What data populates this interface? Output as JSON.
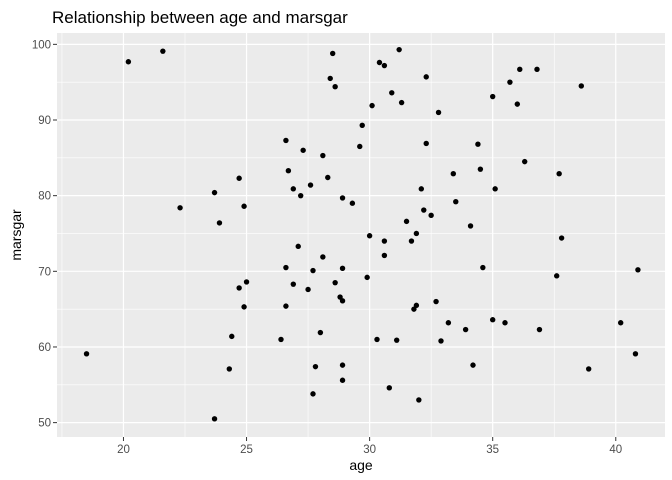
{
  "chart_data": {
    "type": "scatter",
    "title": "Relationship between age and marsgar",
    "xlabel": "age",
    "ylabel": "marsgar",
    "xlim": [
      17.3,
      42.0
    ],
    "ylim": [
      48.1,
      101.5
    ],
    "xticks": [
      20,
      25,
      30,
      35,
      40
    ],
    "yticks": [
      50,
      60,
      70,
      80,
      90,
      100
    ],
    "grid": true,
    "points": [
      {
        "x": 18.5,
        "y": 59.1
      },
      {
        "x": 20.2,
        "y": 97.7
      },
      {
        "x": 21.6,
        "y": 99.1
      },
      {
        "x": 22.3,
        "y": 78.4
      },
      {
        "x": 23.7,
        "y": 80.4
      },
      {
        "x": 23.7,
        "y": 50.5
      },
      {
        "x": 23.9,
        "y": 76.4
      },
      {
        "x": 24.3,
        "y": 57.1
      },
      {
        "x": 24.4,
        "y": 61.4
      },
      {
        "x": 24.7,
        "y": 82.3
      },
      {
        "x": 24.7,
        "y": 67.8
      },
      {
        "x": 24.9,
        "y": 78.6
      },
      {
        "x": 24.9,
        "y": 65.3
      },
      {
        "x": 25.0,
        "y": 68.6
      },
      {
        "x": 26.4,
        "y": 61.0
      },
      {
        "x": 26.6,
        "y": 87.3
      },
      {
        "x": 26.7,
        "y": 83.3
      },
      {
        "x": 26.6,
        "y": 70.5
      },
      {
        "x": 26.6,
        "y": 65.4
      },
      {
        "x": 26.9,
        "y": 80.9
      },
      {
        "x": 26.9,
        "y": 68.3
      },
      {
        "x": 27.1,
        "y": 73.3
      },
      {
        "x": 27.2,
        "y": 80.0
      },
      {
        "x": 27.3,
        "y": 86.0
      },
      {
        "x": 27.5,
        "y": 67.6
      },
      {
        "x": 27.6,
        "y": 81.4
      },
      {
        "x": 27.7,
        "y": 70.1
      },
      {
        "x": 27.7,
        "y": 53.8
      },
      {
        "x": 27.8,
        "y": 57.4
      },
      {
        "x": 28.0,
        "y": 61.9
      },
      {
        "x": 28.1,
        "y": 71.9
      },
      {
        "x": 28.1,
        "y": 85.3
      },
      {
        "x": 28.3,
        "y": 82.4
      },
      {
        "x": 28.4,
        "y": 95.5
      },
      {
        "x": 28.5,
        "y": 98.8
      },
      {
        "x": 28.6,
        "y": 94.4
      },
      {
        "x": 28.6,
        "y": 68.5
      },
      {
        "x": 28.8,
        "y": 66.6
      },
      {
        "x": 28.9,
        "y": 70.4
      },
      {
        "x": 28.9,
        "y": 66.1
      },
      {
        "x": 28.9,
        "y": 79.7
      },
      {
        "x": 28.9,
        "y": 57.6
      },
      {
        "x": 28.9,
        "y": 55.6
      },
      {
        "x": 29.3,
        "y": 79.0
      },
      {
        "x": 29.6,
        "y": 86.5
      },
      {
        "x": 29.7,
        "y": 89.3
      },
      {
        "x": 29.9,
        "y": 69.2
      },
      {
        "x": 30.0,
        "y": 74.7
      },
      {
        "x": 30.1,
        "y": 91.9
      },
      {
        "x": 30.3,
        "y": 61.0
      },
      {
        "x": 30.4,
        "y": 97.6
      },
      {
        "x": 30.6,
        "y": 97.2
      },
      {
        "x": 30.6,
        "y": 74.0
      },
      {
        "x": 30.6,
        "y": 72.1
      },
      {
        "x": 30.8,
        "y": 54.6
      },
      {
        "x": 30.9,
        "y": 93.6
      },
      {
        "x": 31.1,
        "y": 60.9
      },
      {
        "x": 31.2,
        "y": 99.3
      },
      {
        "x": 31.3,
        "y": 92.3
      },
      {
        "x": 31.5,
        "y": 76.6
      },
      {
        "x": 31.7,
        "y": 74.0
      },
      {
        "x": 31.8,
        "y": 65.0
      },
      {
        "x": 31.9,
        "y": 75.0
      },
      {
        "x": 31.9,
        "y": 65.5
      },
      {
        "x": 32.0,
        "y": 53.0
      },
      {
        "x": 32.1,
        "y": 80.9
      },
      {
        "x": 32.2,
        "y": 78.1
      },
      {
        "x": 32.3,
        "y": 86.9
      },
      {
        "x": 32.3,
        "y": 95.7
      },
      {
        "x": 32.5,
        "y": 77.4
      },
      {
        "x": 32.7,
        "y": 66.0
      },
      {
        "x": 32.8,
        "y": 91.0
      },
      {
        "x": 32.9,
        "y": 60.8
      },
      {
        "x": 33.2,
        "y": 63.2
      },
      {
        "x": 33.4,
        "y": 82.9
      },
      {
        "x": 33.5,
        "y": 79.2
      },
      {
        "x": 33.9,
        "y": 62.3
      },
      {
        "x": 34.1,
        "y": 76.0
      },
      {
        "x": 34.2,
        "y": 57.6
      },
      {
        "x": 34.4,
        "y": 86.8
      },
      {
        "x": 34.5,
        "y": 83.5
      },
      {
        "x": 34.6,
        "y": 70.5
      },
      {
        "x": 35.0,
        "y": 93.1
      },
      {
        "x": 35.0,
        "y": 63.6
      },
      {
        "x": 35.1,
        "y": 80.9
      },
      {
        "x": 35.5,
        "y": 63.2
      },
      {
        "x": 35.7,
        "y": 95.0
      },
      {
        "x": 36.0,
        "y": 92.1
      },
      {
        "x": 36.1,
        "y": 96.7
      },
      {
        "x": 36.3,
        "y": 84.5
      },
      {
        "x": 36.8,
        "y": 96.7
      },
      {
        "x": 36.9,
        "y": 62.3
      },
      {
        "x": 37.6,
        "y": 69.4
      },
      {
        "x": 37.7,
        "y": 82.9
      },
      {
        "x": 37.8,
        "y": 74.4
      },
      {
        "x": 38.6,
        "y": 94.5
      },
      {
        "x": 38.9,
        "y": 57.1
      },
      {
        "x": 40.2,
        "y": 63.2
      },
      {
        "x": 40.8,
        "y": 59.1
      },
      {
        "x": 40.9,
        "y": 70.2
      }
    ]
  },
  "colors": {
    "panel_bg": "#ebebeb",
    "grid_major": "#ffffff",
    "point": "#000000",
    "tick_text": "#4d4d4d",
    "tick_mark": "#333333"
  }
}
